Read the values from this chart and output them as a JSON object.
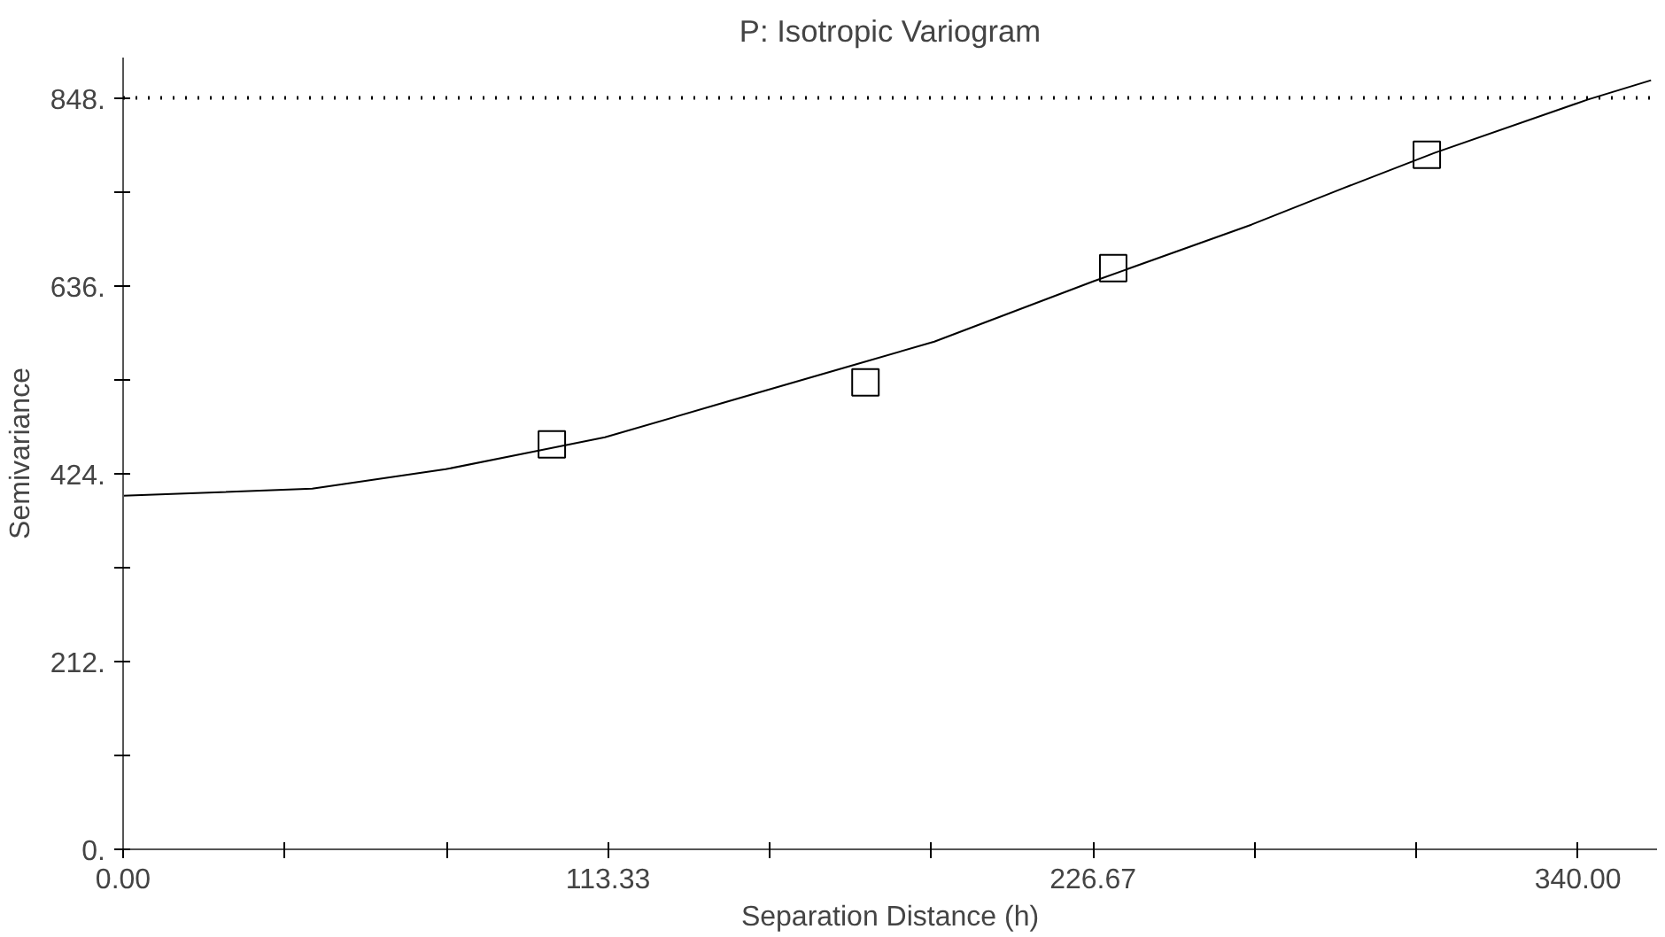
{
  "chart_data": {
    "type": "scatter",
    "title": "P: Isotropic Variogram",
    "xlabel": "Separation Distance (h)",
    "ylabel": "Semivariance",
    "xlim": [
      0,
      358.5
    ],
    "ylim": [
      0,
      893.6
    ],
    "xticks": [
      {
        "value": 0,
        "label": "0.00"
      },
      {
        "value": 37.78,
        "label": null
      },
      {
        "value": 75.56,
        "label": null
      },
      {
        "value": 113.33,
        "label": "113.33"
      },
      {
        "value": 151.11,
        "label": null
      },
      {
        "value": 188.89,
        "label": null
      },
      {
        "value": 226.67,
        "label": "226.67"
      },
      {
        "value": 264.44,
        "label": null
      },
      {
        "value": 302.22,
        "label": null
      },
      {
        "value": 340,
        "label": "340.00"
      }
    ],
    "yticks": [
      {
        "value": 0,
        "label": "0."
      },
      {
        "value": 106,
        "label": null
      },
      {
        "value": 212,
        "label": "212."
      },
      {
        "value": 318,
        "label": null
      },
      {
        "value": 424,
        "label": "424."
      },
      {
        "value": 530,
        "label": null
      },
      {
        "value": 636,
        "label": "636."
      },
      {
        "value": 742,
        "label": null
      },
      {
        "value": 848,
        "label": "848."
      }
    ],
    "grid": false,
    "ref_lines": [
      {
        "axis": "y",
        "value": 848,
        "line_style": "dotted",
        "color": "#000000"
      }
    ],
    "series": [
      {
        "marker": "square",
        "color": "#000000",
        "x": [
          100.2,
          173.5,
          231.4,
          304.7
        ],
        "values": [
          457,
          527,
          656,
          784
        ]
      },
      {
        "type": "line",
        "marker": "none",
        "line_style": "solid",
        "color": "#000000",
        "x": [
          0,
          44.2,
          75.4,
          112.6,
          141,
          169.6,
          189.6,
          226.7,
          263.7,
          285.1,
          306.5,
          342.2,
          357.1
        ],
        "values": [
          399,
          407,
          429,
          465,
          505,
          545,
          573,
          641,
          705,
          746,
          786,
          846,
          868
        ]
      }
    ]
  }
}
